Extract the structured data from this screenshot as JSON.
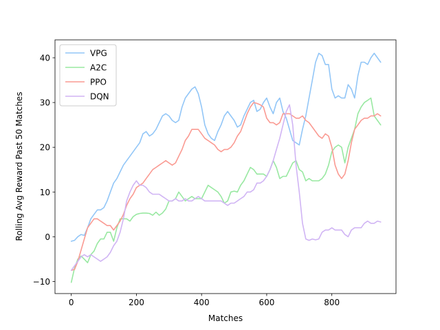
{
  "chart_data": {
    "type": "line",
    "title": "",
    "xlabel": "Matches",
    "ylabel": "Rolling Avg Reward Past 50 Matches",
    "xlim": [
      -50,
      997
    ],
    "ylim": [
      -12.7,
      44
    ],
    "xticks": [
      0,
      200,
      400,
      600,
      800
    ],
    "yticks": [
      -10,
      0,
      10,
      20,
      30,
      40
    ],
    "grid": false,
    "legend": "top-left",
    "series": [
      {
        "name": "VPG",
        "color": "#92c6f7",
        "x": [
          0,
          10,
          20,
          30,
          40,
          50,
          60,
          70,
          80,
          90,
          100,
          110,
          120,
          130,
          140,
          150,
          160,
          170,
          180,
          190,
          200,
          210,
          220,
          230,
          240,
          250,
          260,
          270,
          280,
          290,
          300,
          310,
          320,
          330,
          340,
          350,
          360,
          370,
          380,
          390,
          400,
          410,
          420,
          430,
          440,
          450,
          460,
          470,
          480,
          490,
          500,
          510,
          520,
          530,
          540,
          550,
          560,
          570,
          580,
          590,
          600,
          610,
          620,
          630,
          640,
          650,
          660,
          670,
          680,
          690,
          700,
          710,
          720,
          730,
          740,
          750,
          760,
          770,
          780,
          790,
          800,
          810,
          820,
          830,
          840,
          850,
          860,
          870,
          880,
          890,
          900,
          910,
          920,
          930,
          940,
          950
        ],
        "y": [
          -1,
          -0.8,
          0,
          0.5,
          0.3,
          2,
          4,
          5,
          6,
          6,
          6.5,
          8,
          10,
          12,
          13,
          14.5,
          16,
          17,
          18,
          19,
          20,
          21,
          23,
          23.5,
          22.5,
          23,
          24,
          25.5,
          27,
          27.5,
          27,
          26,
          25.5,
          26,
          29,
          31,
          32,
          33,
          33.5,
          32,
          29,
          25,
          23,
          22,
          21.5,
          23.5,
          25,
          27,
          28,
          27,
          26,
          24.5,
          25,
          27,
          28.5,
          30,
          30.5,
          28,
          28.5,
          30,
          31,
          29,
          27.5,
          30,
          31,
          28,
          26.5,
          24,
          21.5,
          21,
          20.5,
          24,
          27,
          31,
          35,
          39,
          41,
          40.5,
          38.5,
          38.5,
          33,
          31,
          31.5,
          31,
          31,
          34,
          33,
          31,
          36,
          39,
          39,
          38.5,
          40,
          41,
          40,
          39
        ]
      },
      {
        "name": "A2C",
        "color": "#98e8a1",
        "x": [
          0,
          10,
          20,
          30,
          40,
          50,
          60,
          70,
          80,
          90,
          100,
          110,
          120,
          130,
          140,
          150,
          160,
          170,
          180,
          190,
          200,
          210,
          220,
          230,
          240,
          250,
          260,
          270,
          280,
          290,
          300,
          310,
          320,
          330,
          340,
          350,
          360,
          370,
          380,
          390,
          400,
          410,
          420,
          430,
          440,
          450,
          460,
          470,
          480,
          490,
          500,
          510,
          520,
          530,
          540,
          550,
          560,
          570,
          580,
          590,
          600,
          610,
          620,
          630,
          640,
          650,
          660,
          670,
          680,
          690,
          700,
          710,
          720,
          730,
          740,
          750,
          760,
          770,
          780,
          790,
          800,
          810,
          820,
          830,
          840,
          850,
          860,
          870,
          880,
          890,
          900,
          910,
          920,
          930,
          940,
          950
        ],
        "y": [
          -10.2,
          -7,
          -5,
          -4.3,
          -5,
          -5.8,
          -4,
          -3.2,
          -1.5,
          -0.5,
          -0.5,
          1,
          1,
          -1,
          2,
          4,
          4,
          4,
          3.5,
          4.5,
          5,
          5.2,
          5.3,
          5.3,
          5.2,
          4.8,
          5.5,
          4.8,
          5.3,
          6.2,
          8,
          8,
          8.5,
          10,
          9,
          8,
          8.5,
          9,
          8.5,
          8.5,
          8.5,
          10,
          11.5,
          11,
          10.5,
          10,
          9,
          7.5,
          8,
          10,
          10.2,
          10,
          11.5,
          12.5,
          14,
          15.5,
          15,
          14,
          14,
          14,
          13.5,
          15,
          17,
          15.5,
          13,
          13.5,
          13.5,
          15,
          16.5,
          17,
          15,
          14.5,
          12.5,
          13,
          12.5,
          12.5,
          12.5,
          13,
          14,
          16,
          19,
          20,
          20.5,
          20,
          16.5,
          20,
          22,
          24,
          27.5,
          29,
          30,
          30.5,
          31,
          27,
          26,
          25
        ]
      },
      {
        "name": "PPO",
        "color": "#fa9a92",
        "x": [
          0,
          10,
          20,
          30,
          40,
          50,
          60,
          70,
          80,
          90,
          100,
          110,
          120,
          130,
          140,
          150,
          160,
          170,
          180,
          190,
          200,
          210,
          220,
          230,
          240,
          250,
          260,
          270,
          280,
          290,
          300,
          310,
          320,
          330,
          340,
          350,
          360,
          370,
          380,
          390,
          400,
          410,
          420,
          430,
          440,
          450,
          460,
          470,
          480,
          490,
          500,
          510,
          520,
          530,
          540,
          550,
          560,
          570,
          580,
          590,
          600,
          610,
          620,
          630,
          640,
          650,
          660,
          670,
          680,
          690,
          700,
          710,
          720,
          730,
          740,
          750,
          760,
          770,
          780,
          790,
          800,
          810,
          820,
          830,
          840,
          850,
          860,
          870,
          880,
          890,
          900,
          910,
          920,
          930,
          940,
          950
        ],
        "y": [
          -7.5,
          -7.3,
          -5.5,
          -3,
          -0.5,
          2,
          3,
          4,
          4,
          3.5,
          3,
          2.5,
          2.5,
          1.5,
          2.5,
          3.5,
          5,
          7,
          8.5,
          9.5,
          11,
          11.5,
          12,
          13,
          14,
          15,
          15.5,
          16,
          16.5,
          17,
          16.5,
          16,
          16.5,
          18,
          19.5,
          21.5,
          22.5,
          24,
          24,
          24,
          23,
          22,
          21.5,
          21,
          20.5,
          19.5,
          19,
          19.5,
          19.5,
          20,
          21,
          22.5,
          23.5,
          25.5,
          27.5,
          29,
          30,
          29.8,
          29.5,
          29,
          26.5,
          25.5,
          25.5,
          25,
          25.5,
          27.5,
          27.5,
          27.5,
          27,
          26.5,
          26.5,
          27,
          26,
          25.5,
          24.5,
          23.5,
          22.5,
          22,
          23,
          22.5,
          20,
          16,
          14,
          13,
          14,
          17,
          21,
          24,
          25,
          26,
          26.5,
          26.5,
          27,
          27,
          27.5,
          27
        ]
      },
      {
        "name": "DQN",
        "color": "#d0b4f4",
        "x": [
          0,
          10,
          20,
          30,
          40,
          50,
          60,
          70,
          80,
          90,
          100,
          110,
          120,
          130,
          140,
          150,
          160,
          170,
          180,
          190,
          200,
          210,
          220,
          230,
          240,
          250,
          260,
          270,
          280,
          290,
          300,
          310,
          320,
          330,
          340,
          350,
          360,
          370,
          380,
          390,
          400,
          410,
          420,
          430,
          440,
          450,
          460,
          470,
          480,
          490,
          500,
          510,
          520,
          530,
          540,
          550,
          560,
          570,
          580,
          590,
          600,
          610,
          620,
          630,
          640,
          650,
          660,
          670,
          680,
          690,
          700,
          710,
          720,
          730,
          740,
          750,
          760,
          770,
          780,
          790,
          800,
          810,
          820,
          830,
          840,
          850,
          860,
          870,
          880,
          890,
          900,
          910,
          920,
          930,
          940,
          950
        ],
        "y": [
          -7.5,
          -6.5,
          -5.5,
          -4.5,
          -4,
          -4.5,
          -4,
          -4.5,
          -5,
          -5.5,
          -5,
          -4.5,
          -3.5,
          -2,
          -1,
          1,
          4,
          8,
          10,
          11.5,
          12.5,
          11.5,
          11.5,
          11,
          10,
          9.5,
          9.5,
          9.5,
          9,
          8.5,
          8,
          8,
          8.5,
          8,
          8,
          8.5,
          8,
          8,
          8.5,
          9,
          8.5,
          8,
          8,
          8,
          8,
          8,
          8,
          7.5,
          7,
          7.5,
          7.5,
          8,
          8.5,
          9,
          10,
          10,
          10.5,
          12,
          12,
          12.5,
          13.5,
          15,
          17,
          19.5,
          22,
          25,
          28,
          29.5,
          25,
          16,
          10,
          3,
          -0.5,
          -0.8,
          -0.5,
          -0.7,
          -0.5,
          1,
          1.5,
          1.5,
          2,
          1.5,
          1.5,
          1.5,
          0.5,
          0,
          1.5,
          2,
          2,
          2,
          3,
          3.5,
          3,
          3,
          3.5,
          3.3
        ]
      }
    ]
  }
}
